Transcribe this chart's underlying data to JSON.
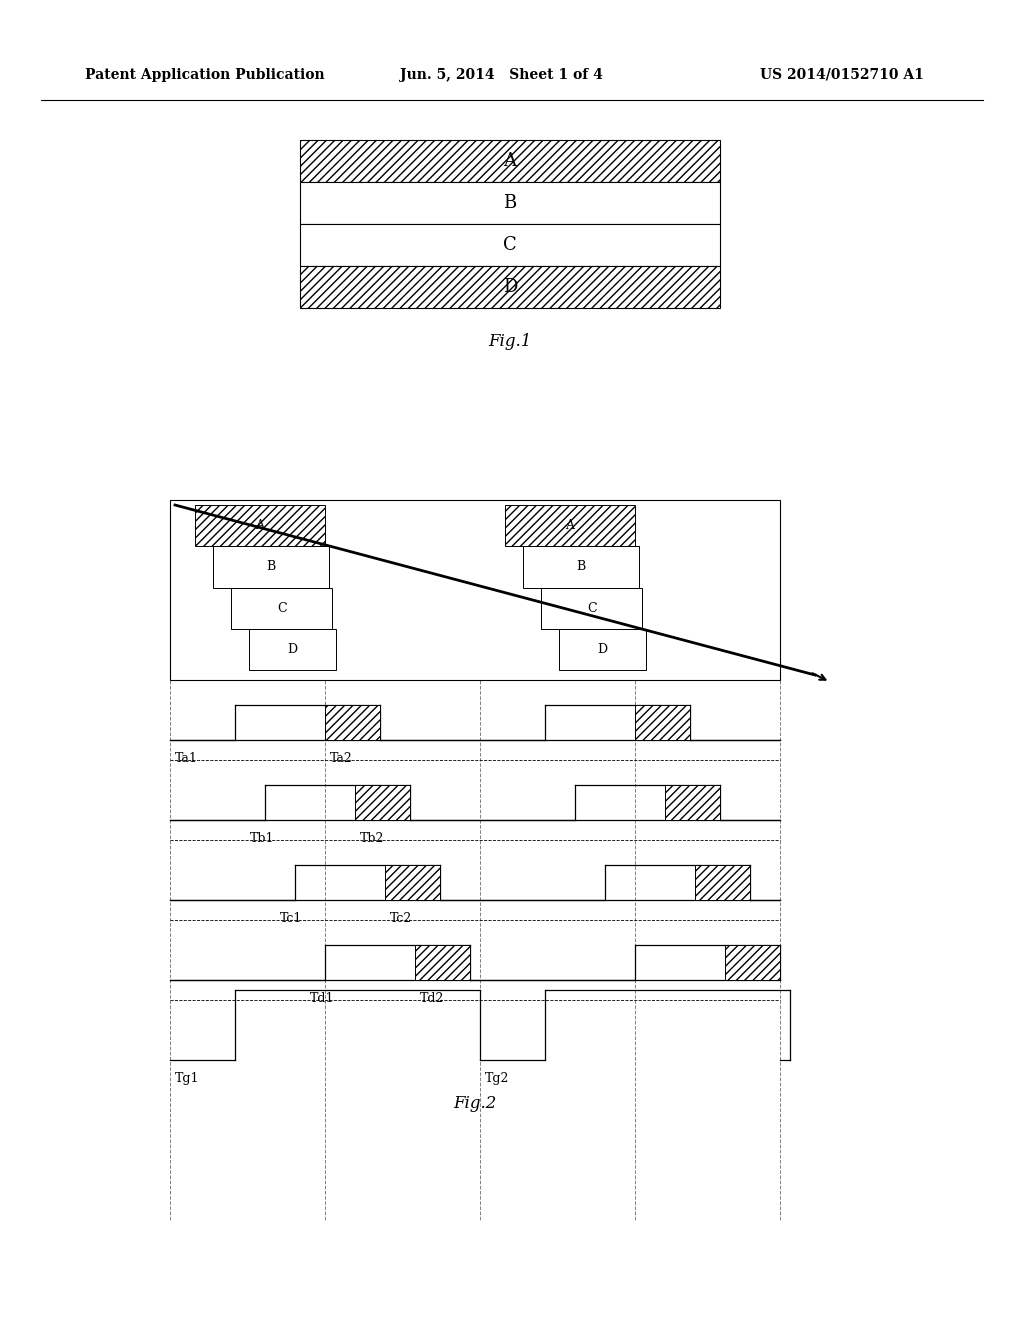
{
  "bg_color": "#ffffff",
  "header_left": "Patent Application Publication",
  "header_mid": "Jun. 5, 2014   Sheet 1 of 4",
  "header_right": "US 2014/0152710 A1",
  "fig1_label": "Fig.1",
  "fig2_label": "Fig.2",
  "fig1_rows": [
    "A",
    "B",
    "C",
    "D"
  ],
  "fig1_hatched": [
    true,
    false,
    false,
    true
  ],
  "timing_labels_row": [
    "Ta1",
    "Ta2"
  ],
  "timing_labels_b": [
    "Tb1",
    "Tb2"
  ],
  "timing_labels_c": [
    "Tc1",
    "Tc2"
  ],
  "timing_labels_d": [
    "Td1",
    "Td2"
  ],
  "timing_labels_g": [
    "Tg1",
    "Tg2"
  ],
  "abcd_labels": [
    "A",
    "B",
    "C",
    "D"
  ]
}
